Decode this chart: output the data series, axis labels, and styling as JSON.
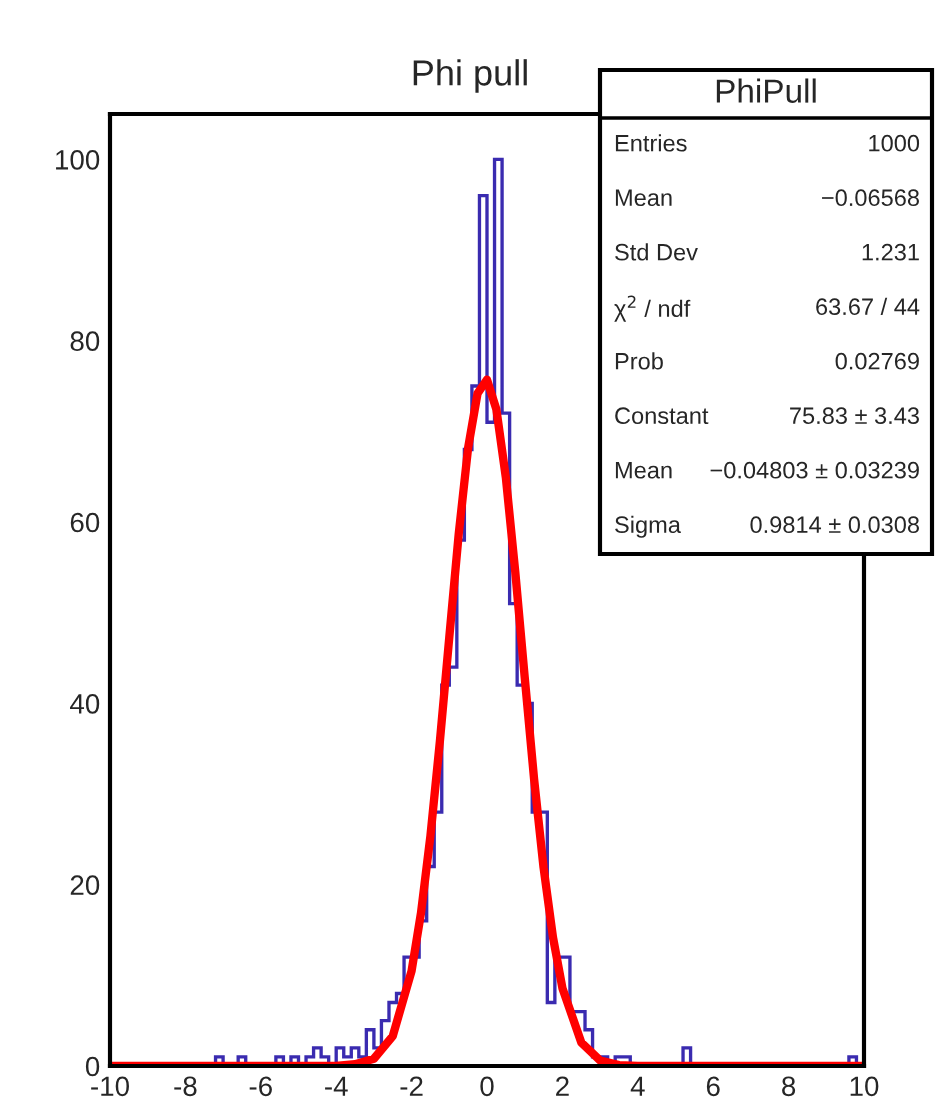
{
  "chart_data": {
    "type": "histogram",
    "title": "Phi pull",
    "xlim": [
      -10,
      10
    ],
    "xticks": [
      -10,
      -8,
      -6,
      -4,
      -2,
      0,
      2,
      4,
      6,
      8,
      10
    ],
    "ylim": [
      0,
      105
    ],
    "yticks": [
      0,
      20,
      40,
      60,
      80,
      100
    ],
    "grid": false,
    "series": [
      {
        "color": "#3a2bb0",
        "bins": [
          -10.0,
          -9.8,
          -9.6,
          -9.4,
          -9.2,
          -9.0,
          -8.8,
          -8.6,
          -8.4,
          -8.2,
          -8.0,
          -7.8,
          -7.6,
          -7.4,
          -7.2,
          -7.0,
          -6.8,
          -6.6,
          -6.4,
          -6.2,
          -6.0,
          -5.8,
          -5.6,
          -5.4,
          -5.2,
          -5.0,
          -4.8,
          -4.6,
          -4.4,
          -4.2,
          -4.0,
          -3.8,
          -3.6,
          -3.4,
          -3.2,
          -3.0,
          -2.8,
          -2.6,
          -2.4,
          -2.2,
          -2.0,
          -1.8,
          -1.6,
          -1.4,
          -1.2,
          -1.0,
          -0.8,
          -0.6,
          -0.4,
          -0.2,
          0.0,
          0.2,
          0.4,
          0.6,
          0.8,
          1.0,
          1.2,
          1.4,
          1.6,
          1.8,
          2.0,
          2.2,
          2.4,
          2.6,
          2.8,
          3.0,
          3.2,
          3.4,
          3.6,
          3.8,
          4.0,
          4.2,
          4.4,
          4.6,
          4.8,
          5.0,
          5.2,
          5.4,
          5.6,
          5.8,
          6.0,
          6.2,
          6.4,
          6.6,
          6.8,
          7.0,
          7.2,
          7.4,
          7.6,
          7.8,
          8.0,
          8.2,
          8.4,
          8.6,
          8.8,
          9.0,
          9.2,
          9.4,
          9.6,
          9.8,
          10.0
        ],
        "values": [
          0,
          0,
          0,
          0,
          0,
          0,
          0,
          0,
          0,
          0,
          0,
          0,
          0,
          0,
          1,
          0,
          0,
          1,
          0,
          0,
          0,
          0,
          1,
          0,
          1,
          0,
          1,
          2,
          1,
          0,
          2,
          1,
          2,
          1,
          4,
          2,
          5,
          7,
          8,
          12,
          12,
          16,
          22,
          28,
          42,
          44,
          58,
          68,
          75,
          96,
          71,
          100,
          72,
          51,
          42,
          40,
          28,
          28,
          7,
          12,
          12,
          6,
          6,
          4,
          1,
          1,
          0,
          1,
          1,
          0,
          0,
          0,
          0,
          0,
          0,
          0,
          2,
          0,
          0,
          0,
          0,
          0,
          0,
          0,
          0,
          0,
          0,
          0,
          0,
          0,
          0,
          0,
          0,
          0,
          0,
          0,
          0,
          0,
          1,
          0
        ]
      },
      {
        "type": "line",
        "color": "#ff0000",
        "x": [
          -10,
          -4,
          -3.5,
          -3,
          -2.5,
          -2,
          -1.75,
          -1.5,
          -1.25,
          -1,
          -0.75,
          -0.5,
          -0.25,
          0,
          0.25,
          0.5,
          0.75,
          1,
          1.25,
          1.5,
          1.75,
          2,
          2.5,
          3,
          3.5,
          4,
          10
        ],
        "values": [
          0,
          0,
          0.2,
          0.8,
          3.3,
          10.5,
          16.9,
          25.4,
          35.8,
          47.3,
          58.7,
          68.2,
          74.2,
          75.7,
          72.4,
          64.9,
          54.5,
          42.9,
          31.6,
          21.9,
          14.2,
          8.6,
          2.6,
          0.6,
          0.1,
          0,
          0
        ]
      }
    ],
    "annotations": [
      "PhiPull",
      "Entries",
      "1000",
      "Mean",
      "−0.06568",
      "Std Dev",
      "1.231",
      "χ$^{2}$ / ndf",
      "63.67 / 44",
      "Prob",
      "0.02769",
      "Constant",
      "75.83 ± 3.43",
      "Mean",
      "−0.04803 ± 0.03239",
      "Sigma",
      "0.9814 ± 0.0308"
    ]
  }
}
